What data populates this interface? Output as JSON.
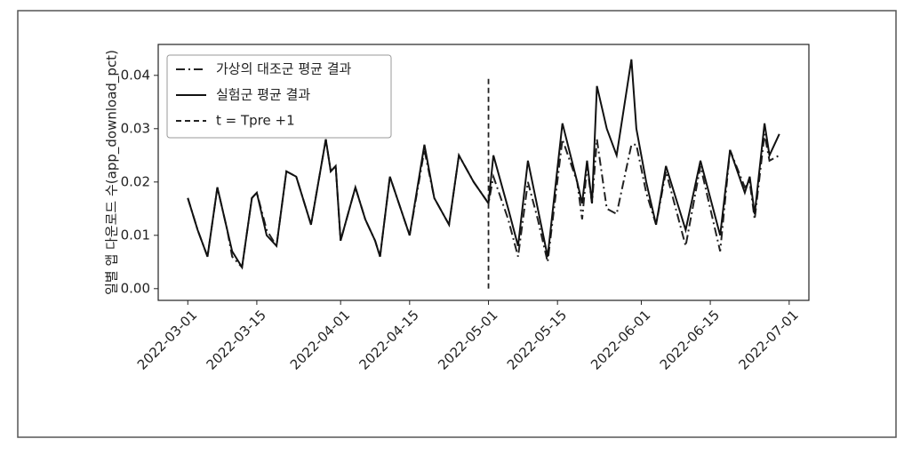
{
  "chart_data": {
    "type": "line",
    "y_label": "일별 앱 다운로드 수(app_download_pct)",
    "x": [
      "2022-03-01",
      "2022-03-03",
      "2022-03-05",
      "2022-03-07",
      "2022-03-09",
      "2022-03-10",
      "2022-03-12",
      "2022-03-14",
      "2022-03-15",
      "2022-03-17",
      "2022-03-19",
      "2022-03-21",
      "2022-03-23",
      "2022-03-25",
      "2022-03-26",
      "2022-03-29",
      "2022-03-30",
      "2022-03-31",
      "2022-04-01",
      "2022-04-04",
      "2022-04-06",
      "2022-04-08",
      "2022-04-09",
      "2022-04-11",
      "2022-04-15",
      "2022-04-18",
      "2022-04-20",
      "2022-04-23",
      "2022-04-25",
      "2022-04-28",
      "2022-05-01",
      "2022-05-02",
      "2022-05-05",
      "2022-05-07",
      "2022-05-09",
      "2022-05-11",
      "2022-05-13",
      "2022-05-16",
      "2022-05-19",
      "2022-05-20",
      "2022-05-21",
      "2022-05-22",
      "2022-05-23",
      "2022-05-25",
      "2022-05-27",
      "2022-05-30",
      "2022-05-31",
      "2022-06-02",
      "2022-06-04",
      "2022-06-06",
      "2022-06-10",
      "2022-06-13",
      "2022-06-17",
      "2022-06-19",
      "2022-06-22",
      "2022-06-23",
      "2022-06-24",
      "2022-06-26",
      "2022-06-27",
      "2022-06-29"
    ],
    "series": [
      {
        "name": "가상의 대조군 평균 결과",
        "color": "#222222",
        "dash": "10 4 2 4",
        "values": [
          0.017,
          0.011,
          0.006,
          0.019,
          0.011,
          0.006,
          0.004,
          0.017,
          0.018,
          0.011,
          0.008,
          0.022,
          0.021,
          0.015,
          0.012,
          0.028,
          0.022,
          0.023,
          0.009,
          0.019,
          0.013,
          0.009,
          0.006,
          0.021,
          0.01,
          0.026,
          0.017,
          0.012,
          0.025,
          0.02,
          0.016,
          0.021,
          0.013,
          0.006,
          0.02,
          0.013,
          0.005,
          0.028,
          0.02,
          0.013,
          0.023,
          0.016,
          0.028,
          0.015,
          0.014,
          0.027,
          0.027,
          0.018,
          0.012,
          0.022,
          0.008,
          0.023,
          0.007,
          0.026,
          0.019,
          0.02,
          0.013,
          0.029,
          0.024,
          0.025
        ]
      },
      {
        "name": "실험군 평균 결과",
        "color": "#111111",
        "dash": "none",
        "values": [
          0.017,
          0.011,
          0.006,
          0.019,
          0.011,
          0.007,
          0.004,
          0.017,
          0.018,
          0.01,
          0.008,
          0.022,
          0.021,
          0.015,
          0.012,
          0.028,
          0.022,
          0.023,
          0.009,
          0.019,
          0.013,
          0.009,
          0.006,
          0.021,
          0.01,
          0.027,
          0.017,
          0.012,
          0.025,
          0.02,
          0.016,
          0.025,
          0.015,
          0.008,
          0.024,
          0.015,
          0.006,
          0.031,
          0.02,
          0.016,
          0.024,
          0.016,
          0.038,
          0.03,
          0.025,
          0.043,
          0.03,
          0.02,
          0.012,
          0.023,
          0.011,
          0.024,
          0.01,
          0.026,
          0.018,
          0.021,
          0.014,
          0.031,
          0.025,
          0.029
        ]
      }
    ],
    "vline": {
      "name": "t = Tpre +1",
      "x": "2022-05-01",
      "ymin": 0,
      "ymax": 0.04,
      "color": "#222222",
      "dash": "6 4"
    },
    "xlim": [
      "2022-02-23",
      "2022-07-05"
    ],
    "xticks": [
      "2022-03-01",
      "2022-03-15",
      "2022-04-01",
      "2022-04-15",
      "2022-05-01",
      "2022-05-15",
      "2022-06-01",
      "2022-06-15",
      "2022-07-01"
    ],
    "ylim": [
      -0.0022,
      0.0458
    ],
    "yticks": [
      {
        "value": 0,
        "label": "0.00"
      },
      {
        "value": 0.01,
        "label": "0.01"
      },
      {
        "value": 0.02,
        "label": "0.02"
      },
      {
        "value": 0.03,
        "label": "0.03"
      },
      {
        "value": 0.04,
        "label": "0.04"
      }
    ],
    "legend": "upper left",
    "grid": false
  }
}
